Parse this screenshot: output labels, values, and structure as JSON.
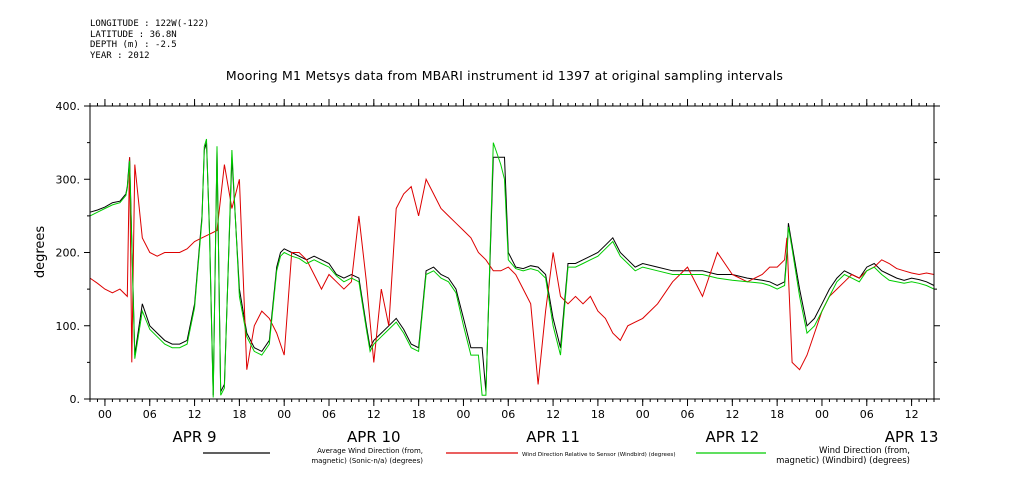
{
  "header": {
    "meta_lines": [
      "LONGITUDE : 122W(-122)",
      "LATITUDE : 36.8N",
      "DEPTH (m) : -2.5",
      "YEAR : 2012"
    ],
    "title": "Mooring M1 Metsys data from MBARI instrument id 1397 at original sampling intervals"
  },
  "chart_data": {
    "type": "line",
    "title": "Mooring M1 Metsys data from MBARI instrument id 1397 at original sampling intervals",
    "ylabel": "degrees",
    "xlabel": "",
    "x_unit": "hours since APR 8 22:00 (2012)",
    "xlim": [
      0,
      113
    ],
    "ylim": [
      0,
      400
    ],
    "grid": false,
    "y_ticks": [
      0,
      100,
      200,
      300,
      400
    ],
    "y_tick_labels": [
      "0.",
      "100.",
      "200.",
      "300.",
      "400."
    ],
    "x_ticks": [
      2,
      8,
      14,
      20,
      26,
      32,
      38,
      44,
      50,
      56,
      62,
      68,
      74,
      80,
      86,
      92,
      98,
      104,
      110
    ],
    "x_tick_labels": [
      "00",
      "06",
      "12",
      "18",
      "00",
      "06",
      "12",
      "18",
      "00",
      "06",
      "12",
      "18",
      "00",
      "06",
      "12",
      "18",
      "00",
      "06",
      "12"
    ],
    "day_labels": [
      {
        "x": 14,
        "label": "APR  9"
      },
      {
        "x": 38,
        "label": "APR 10"
      },
      {
        "x": 62,
        "label": "APR 11"
      },
      {
        "x": 86,
        "label": "APR 12"
      },
      {
        "x": 110,
        "label": "APR 13"
      }
    ],
    "series": [
      {
        "name": "Average Wind Direction (from,\nmagnetic) (Sonic-n/a) (degrees)",
        "color": "#000000",
        "x": [
          0,
          1,
          2,
          3,
          4,
          4.8,
          5,
          5.3,
          6,
          7,
          8,
          9,
          10,
          11,
          12,
          13,
          14,
          15,
          15.3,
          15.6,
          16,
          16.5,
          17,
          17.5,
          18,
          19,
          20,
          21,
          22,
          23,
          24,
          25,
          25.5,
          26,
          27,
          28,
          29,
          30,
          31,
          32,
          33,
          34,
          35,
          36,
          37,
          37.5,
          38,
          39,
          40,
          41,
          42,
          43,
          44,
          45,
          46,
          47,
          48,
          49,
          50,
          51,
          52,
          52.5,
          53,
          54,
          55,
          55.5,
          56,
          57,
          58,
          59,
          60,
          61,
          62,
          63,
          64,
          65,
          66,
          67,
          68,
          69,
          70,
          71,
          72,
          73,
          74,
          76,
          78,
          80,
          82,
          84,
          86,
          88,
          90,
          91,
          92,
          93,
          93.3,
          93.5,
          94,
          95,
          96,
          97,
          98,
          99,
          100,
          101,
          102,
          103,
          104,
          105,
          106,
          107,
          108,
          109,
          110,
          111,
          112,
          113
        ],
        "y": [
          255,
          258,
          262,
          268,
          270,
          280,
          290,
          330,
          60,
          130,
          100,
          90,
          80,
          75,
          75,
          80,
          130,
          250,
          340,
          350,
          230,
          5,
          340,
          10,
          20,
          330,
          150,
          90,
          70,
          65,
          80,
          180,
          200,
          205,
          200,
          195,
          190,
          195,
          190,
          185,
          170,
          165,
          170,
          165,
          100,
          70,
          80,
          90,
          100,
          110,
          95,
          75,
          70,
          175,
          180,
          170,
          165,
          150,
          110,
          70,
          70,
          70,
          10,
          330,
          330,
          330,
          200,
          180,
          178,
          182,
          180,
          170,
          110,
          70,
          185,
          185,
          190,
          195,
          200,
          210,
          220,
          200,
          190,
          180,
          185,
          180,
          175,
          175,
          175,
          170,
          170,
          165,
          162,
          160,
          155,
          160,
          200,
          240,
          210,
          150,
          100,
          110,
          130,
          150,
          165,
          175,
          170,
          165,
          180,
          185,
          175,
          170,
          165,
          162,
          165,
          163,
          160,
          155
        ],
        "y_note": "black trace read at sample points"
      },
      {
        "name": "Wind Direction Relative to Sensor (Windbird) (degrees)",
        "color": "#dd0000",
        "x": [
          0,
          1,
          2,
          3,
          4,
          5,
          5.3,
          5.6,
          6,
          7,
          8,
          9,
          10,
          11,
          12,
          13,
          14,
          15,
          16,
          17,
          18,
          19,
          20,
          21,
          22,
          23,
          24,
          25,
          26,
          27,
          28,
          29,
          30,
          31,
          32,
          33,
          34,
          35,
          36,
          37,
          38,
          39,
          40,
          41,
          42,
          43,
          44,
          45,
          46,
          47,
          48,
          49,
          50,
          51,
          52,
          53,
          54,
          55,
          56,
          57,
          58,
          59,
          60,
          61,
          62,
          63,
          64,
          65,
          66,
          67,
          68,
          69,
          70,
          71,
          72,
          74,
          76,
          78,
          80,
          82,
          84,
          86,
          88,
          90,
          91,
          92,
          93,
          93.3,
          93.5,
          94,
          95,
          96,
          97,
          98,
          99,
          100,
          101,
          102,
          103,
          104,
          105,
          106,
          107,
          108,
          109,
          110,
          111,
          112,
          113
        ],
        "y": [
          165,
          158,
          150,
          145,
          150,
          140,
          330,
          50,
          320,
          220,
          200,
          195,
          200,
          200,
          200,
          205,
          215,
          220,
          225,
          230,
          320,
          260,
          300,
          40,
          100,
          120,
          110,
          90,
          60,
          200,
          200,
          190,
          170,
          150,
          170,
          160,
          150,
          160,
          250,
          160,
          50,
          150,
          100,
          260,
          280,
          290,
          250,
          300,
          280,
          260,
          250,
          240,
          230,
          220,
          200,
          190,
          175,
          175,
          180,
          170,
          150,
          130,
          20,
          120,
          200,
          140,
          130,
          140,
          130,
          140,
          120,
          110,
          90,
          80,
          100,
          110,
          130,
          160,
          180,
          140,
          200,
          170,
          160,
          170,
          180,
          180,
          190,
          220,
          170,
          50,
          40,
          60,
          90,
          120,
          140,
          150,
          160,
          170,
          165,
          175,
          180,
          190,
          185,
          178,
          175,
          172,
          170,
          172,
          170
        ],
        "y_note": "red trace read at sample points"
      },
      {
        "name": "Wind Direction (from,\nmagnetic) (Windbird) (degrees)",
        "color": "#00cc00",
        "x": [
          0,
          1,
          2,
          3,
          4,
          4.8,
          5,
          5.3,
          6,
          7,
          8,
          9,
          10,
          11,
          12,
          13,
          14,
          15,
          15.3,
          15.6,
          16,
          16.5,
          17,
          17.5,
          18,
          19,
          20,
          21,
          22,
          23,
          24,
          25,
          25.5,
          26,
          27,
          28,
          29,
          30,
          31,
          32,
          33,
          34,
          35,
          36,
          37,
          37.5,
          38,
          39,
          40,
          41,
          42,
          43,
          44,
          45,
          46,
          47,
          48,
          49,
          50,
          51,
          52,
          52.5,
          53,
          54,
          55,
          55.5,
          56,
          57,
          58,
          59,
          60,
          61,
          62,
          63,
          64,
          65,
          66,
          67,
          68,
          69,
          70,
          71,
          72,
          73,
          74,
          76,
          78,
          80,
          82,
          84,
          86,
          88,
          90,
          91,
          92,
          93,
          93.3,
          93.5,
          94,
          95,
          96,
          97,
          98,
          99,
          100,
          101,
          102,
          103,
          104,
          105,
          106,
          107,
          108,
          109,
          110,
          111,
          112,
          113
        ],
        "y": [
          250,
          255,
          260,
          265,
          268,
          278,
          288,
          325,
          55,
          120,
          95,
          85,
          75,
          70,
          70,
          75,
          125,
          245,
          345,
          355,
          225,
          2,
          345,
          5,
          15,
          340,
          140,
          85,
          65,
          60,
          75,
          175,
          195,
          200,
          195,
          192,
          185,
          190,
          185,
          180,
          168,
          160,
          165,
          160,
          95,
          65,
          75,
          85,
          95,
          105,
          90,
          70,
          65,
          170,
          175,
          165,
          160,
          145,
          100,
          60,
          60,
          5,
          5,
          350,
          320,
          300,
          190,
          178,
          175,
          178,
          175,
          165,
          100,
          60,
          180,
          180,
          185,
          190,
          195,
          205,
          215,
          195,
          185,
          175,
          180,
          175,
          170,
          170,
          170,
          165,
          162,
          160,
          158,
          155,
          150,
          155,
          195,
          235,
          205,
          140,
          90,
          100,
          120,
          140,
          160,
          170,
          165,
          160,
          175,
          180,
          170,
          162,
          160,
          158,
          160,
          158,
          155,
          150
        ],
        "y_note": "green trace read at sample points"
      }
    ],
    "legend": {
      "placement": "bottom",
      "entries": [
        {
          "text": "Average Wind Direction (from,\nmagnetic) (Sonic-n/a) (degrees)",
          "color": "#000000"
        },
        {
          "text": "Wind Direction Relative to Sensor (Windbird) (degrees)",
          "color": "#dd0000"
        },
        {
          "text": "Wind Direction (from,\nmagnetic) (Windbird) (degrees)",
          "color": "#00cc00"
        }
      ]
    }
  }
}
